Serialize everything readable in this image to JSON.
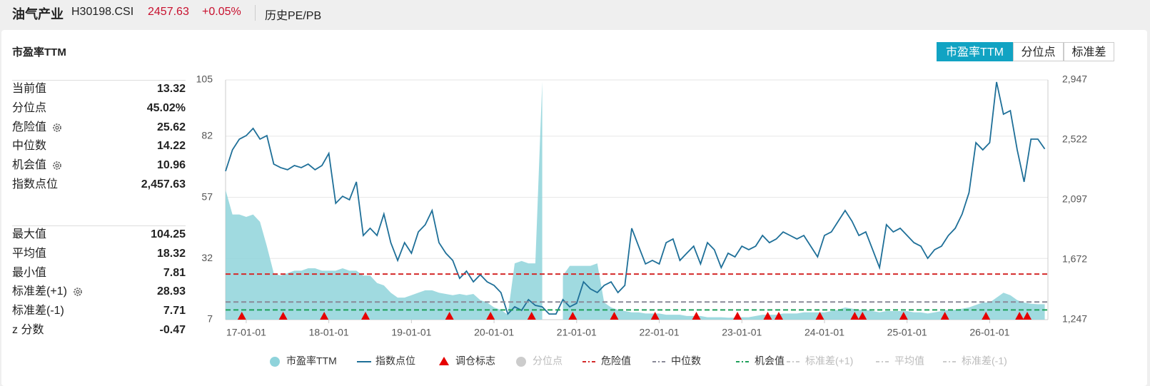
{
  "header": {
    "name": "油气产业",
    "code": "H30198.CSI",
    "price": "2457.63",
    "change": "+0.05%",
    "tab": "历史PE/PB"
  },
  "panel": {
    "title": "市盈率TTM",
    "buttons": [
      "市盈率TTM",
      "分位点",
      "标准差"
    ],
    "active_button": 0
  },
  "stats": {
    "main": [
      {
        "label": "当前值",
        "value": "13.32"
      },
      {
        "label": "分位点",
        "value": "45.02%"
      },
      {
        "label": "危险值",
        "value": "25.62",
        "gear": true
      },
      {
        "label": "中位数",
        "value": "14.22"
      },
      {
        "label": "机会值",
        "value": "10.96",
        "gear": true
      },
      {
        "label": "指数点位",
        "value": "2,457.63"
      }
    ],
    "summary": [
      {
        "label": "最大值",
        "value": "104.25"
      },
      {
        "label": "平均值",
        "value": "18.32"
      },
      {
        "label": "最小值",
        "value": "7.81"
      },
      {
        "label": "标准差(+1)",
        "value": "28.93",
        "gear": true
      },
      {
        "label": "标准差(-1)",
        "value": "7.71"
      },
      {
        "label": "z 分数",
        "value": "-0.47"
      }
    ]
  },
  "chart_data": {
    "type": "area-line",
    "x": [
      "16-10-01",
      "16-11-01",
      "16-12-01",
      "17-01-01",
      "17-02-01",
      "17-03-01",
      "17-04-01",
      "17-05-01",
      "17-06-01",
      "17-07-01",
      "17-08-01",
      "17-09-01",
      "17-10-01",
      "17-11-01",
      "17-12-01",
      "18-01-01",
      "18-02-01",
      "18-03-01",
      "18-04-01",
      "18-05-01",
      "18-06-01",
      "18-07-01",
      "18-08-01",
      "18-09-01",
      "18-10-01",
      "18-11-01",
      "18-12-01",
      "19-01-01",
      "19-02-01",
      "19-03-01",
      "19-04-01",
      "19-05-01",
      "19-06-01",
      "19-07-01",
      "19-08-01",
      "19-09-01",
      "19-10-01",
      "19-11-01",
      "19-12-01",
      "20-01-01",
      "20-02-01",
      "20-03-01",
      "20-04-01",
      "20-05-01",
      "20-06-01",
      "20-07-01",
      "20-08-01",
      "20-09-01",
      "20-10-01",
      "20-11-01",
      "20-12-01",
      "21-01-01",
      "21-02-01",
      "21-03-01",
      "21-04-01",
      "21-05-01",
      "21-06-01",
      "21-07-01",
      "21-08-01",
      "21-09-01",
      "21-10-01",
      "21-11-01",
      "21-12-01",
      "22-01-01",
      "22-02-01",
      "22-03-01",
      "22-04-01",
      "22-05-01",
      "22-06-01",
      "22-07-01",
      "22-08-01",
      "22-09-01",
      "22-10-01",
      "22-11-01",
      "22-12-01",
      "23-01-01",
      "23-02-01",
      "23-03-01",
      "23-04-01",
      "23-05-01",
      "23-06-01",
      "23-07-01",
      "23-08-01",
      "23-09-01",
      "23-10-01",
      "23-11-01",
      "23-12-01",
      "24-01-01",
      "24-02-01",
      "24-03-01",
      "24-04-01",
      "24-05-01",
      "24-06-01",
      "24-07-01",
      "24-08-01",
      "24-09-01",
      "24-10-01",
      "24-11-01",
      "24-12-01",
      "25-01-01",
      "25-02-01",
      "25-03-01",
      "25-04-01",
      "25-05-01",
      "25-06-01",
      "25-07-01",
      "25-08-01",
      "25-09-01",
      "25-10-01",
      "25-11-01",
      "25-12-01",
      "26-01-01",
      "26-02-01",
      "26-03-01",
      "26-04-01",
      "26-05-01",
      "26-06-01",
      "26-07-01",
      "26-08-01",
      "26-09-01"
    ],
    "series": [
      {
        "name": "市盈率TTM",
        "kind": "area",
        "color": "#8fd3db",
        "values": [
          60,
          50,
          50,
          49,
          50,
          47,
          37,
          26,
          25,
          26,
          27,
          27,
          28,
          28,
          27,
          27,
          27,
          28,
          27,
          27,
          25,
          25,
          22,
          21,
          18,
          16,
          16,
          17,
          18,
          19,
          19,
          18,
          17.5,
          17,
          17.5,
          17,
          17.5,
          15,
          14,
          12,
          11,
          9,
          30,
          31,
          30,
          30,
          104.25,
          null,
          null,
          25,
          29,
          29,
          29,
          29,
          30,
          14,
          12,
          11,
          10.5,
          10,
          10,
          9.5,
          9.5,
          9.5,
          9,
          9,
          9,
          8.5,
          8.5,
          8.5,
          8,
          8,
          8,
          7.8,
          7.81,
          8,
          8,
          8.5,
          9,
          9,
          9,
          9.5,
          9.5,
          9.5,
          10,
          10,
          10,
          10,
          10.5,
          11,
          12,
          11.5,
          11,
          11,
          10.5,
          10,
          10.5,
          10.5,
          10.5,
          10.5,
          10,
          10,
          9.5,
          10,
          10.5,
          11,
          11,
          11.5,
          12,
          13,
          14,
          14,
          16,
          18,
          17,
          15,
          14,
          13.5,
          13.3,
          13.32
        ]
      },
      {
        "name": "指数点位",
        "kind": "line",
        "axis": "y2",
        "color": "#1e6f98",
        "values": [
          2300,
          2451,
          2527,
          2552,
          2603,
          2527,
          2552,
          2350,
          2325,
          2310,
          2340,
          2325,
          2350,
          2310,
          2340,
          2426,
          2072,
          2122,
          2097,
          2224,
          1844,
          1895,
          1844,
          1996,
          1793,
          1667,
          1793,
          1718,
          1869,
          1920,
          2021,
          1793,
          1718,
          1667,
          1540,
          1591,
          1515,
          1566,
          1515,
          1490,
          1439,
          1287,
          1338,
          1313,
          1389,
          1348,
          1338,
          1287,
          1287,
          1389,
          1338,
          1363,
          1515,
          1465,
          1439,
          1490,
          1515,
          1439,
          1490,
          1895,
          1768,
          1642,
          1667,
          1642,
          1793,
          1819,
          1667,
          1718,
          1768,
          1642,
          1793,
          1743,
          1616,
          1718,
          1692,
          1768,
          1743,
          1768,
          1844,
          1793,
          1819,
          1869,
          1844,
          1819,
          1844,
          1768,
          1692,
          1844,
          1869,
          1945,
          2021,
          1945,
          1844,
          1869,
          1743,
          1616,
          1920,
          1869,
          1895,
          1844,
          1793,
          1768,
          1682,
          1743,
          1768,
          1844,
          1895,
          1996,
          2148,
          2502,
          2451,
          2502,
          2932,
          2704,
          2729,
          2451,
          2224,
          2527,
          2527,
          2457.63
        ]
      }
    ],
    "markers": {
      "name": "调仓标志",
      "color": "#e60000",
      "dates": [
        "16-12-12",
        "17-06-12",
        "17-12-11",
        "18-06-11",
        "19-06-17",
        "19-12-16",
        "20-06-15",
        "20-12-14",
        "21-06-15",
        "21-12-13",
        "22-06-13",
        "22-12-12",
        "23-04-24",
        "23-06-12",
        "23-12-11",
        "24-05-13",
        "24-06-17",
        "24-12-16",
        "25-06-16",
        "25-12-15",
        "26-05-11",
        "26-06-15"
      ]
    },
    "reference_lines": [
      {
        "name": "危险值",
        "value": 25.62,
        "color": "#d42a2a"
      },
      {
        "name": "中位数",
        "value": 14.22,
        "color": "#8a8a98"
      },
      {
        "name": "机会值",
        "value": 10.96,
        "color": "#1fa05a"
      }
    ],
    "hidden_series": [
      {
        "name": "分位点",
        "symbol": "dot"
      },
      {
        "name": "标准差(+1)",
        "symbol": "dash"
      },
      {
        "name": "平均值",
        "symbol": "dash"
      },
      {
        "name": "标准差(-1)",
        "symbol": "dash"
      }
    ],
    "xlim": [
      "16-10-01",
      "26-09-15"
    ],
    "xticks": [
      "17-01-01",
      "18-01-01",
      "19-01-01",
      "20-01-01",
      "21-01-01",
      "22-01-01",
      "23-01-01",
      "24-01-01",
      "25-01-01",
      "26-01-01"
    ],
    "ylim": [
      7,
      105
    ],
    "yticks": [
      7,
      32,
      57,
      82,
      105
    ],
    "y2lim": [
      1247,
      2947
    ],
    "y2ticks": [
      {
        "value": 1247,
        "label": "1,247"
      },
      {
        "value": 1672,
        "label": "1,672"
      },
      {
        "value": 2097,
        "label": "2,097"
      },
      {
        "value": 2522,
        "label": "2,522"
      },
      {
        "value": 2947,
        "label": "2,947"
      }
    ],
    "grid": true
  }
}
